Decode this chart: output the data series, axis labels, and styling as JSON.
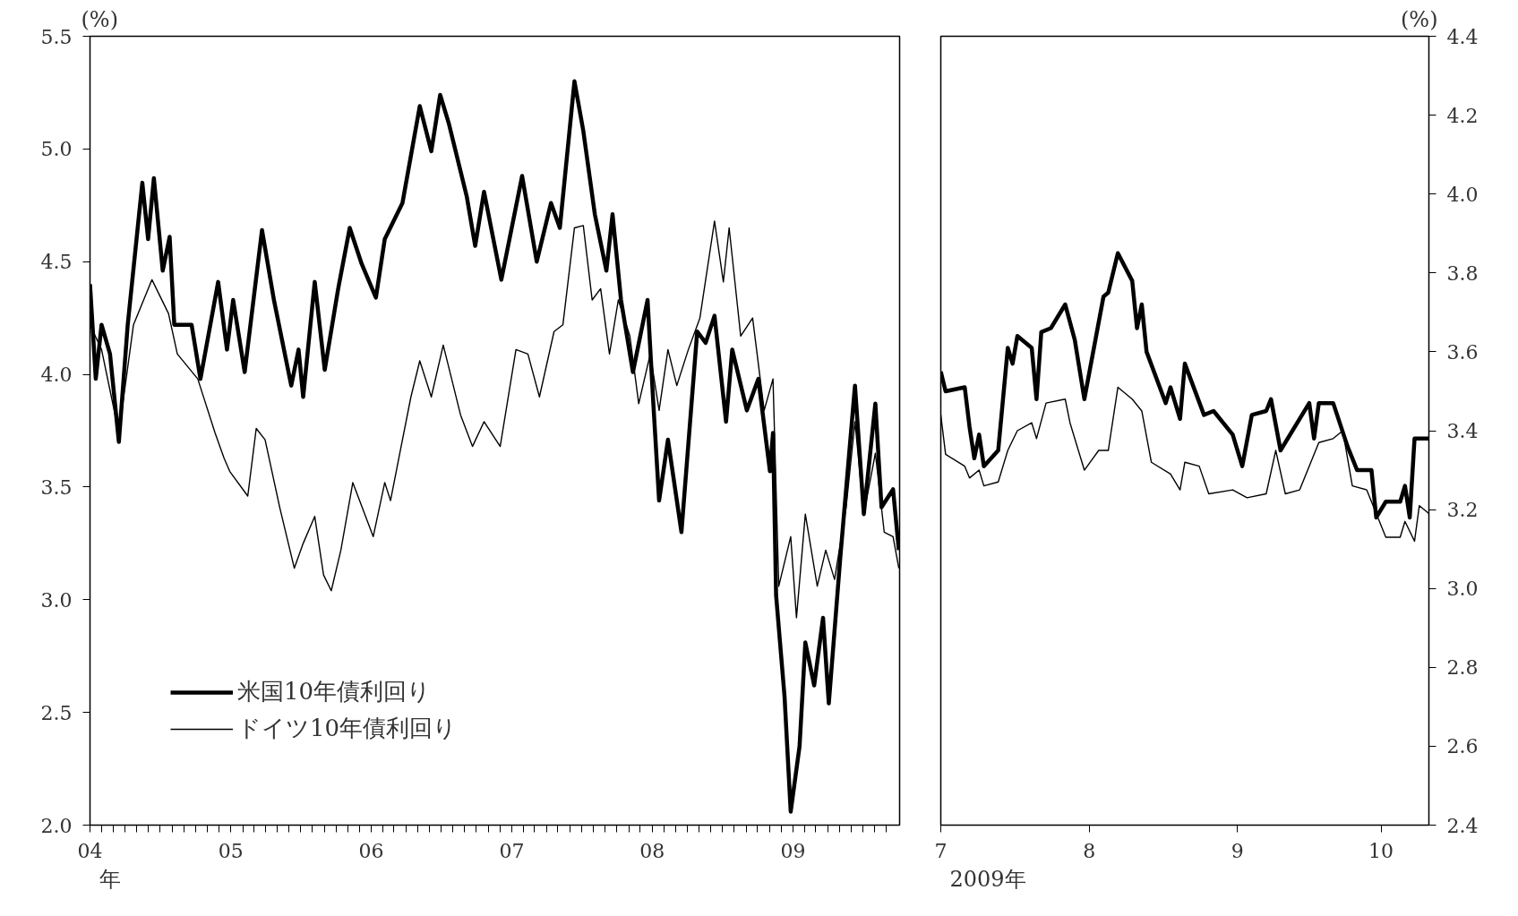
{
  "chart_data": [
    {
      "type": "line",
      "ylabel": "(%)",
      "xlabel": "年",
      "xlim": [
        "2004-01-01",
        "2009-10-05"
      ],
      "ylim": [
        2.0,
        5.5
      ],
      "yticks": [
        {
          "value": 2,
          "label": "2.0"
        },
        2.5,
        {
          "value": 3,
          "label": "3.0"
        },
        3.5,
        {
          "value": 4,
          "label": "4.0"
        },
        4.5,
        {
          "value": 5,
          "label": "5.0"
        },
        5.5
      ],
      "legend": "bottom left",
      "grid": false,
      "xticks": [
        {
          "value": "2004-01",
          "label": "04"
        },
        {
          "value": "2004-02",
          "label": null
        },
        {
          "value": "2004-03",
          "label": null
        },
        {
          "value": "2004-04",
          "label": null
        },
        {
          "value": "2004-05",
          "label": null
        },
        {
          "value": "2004-06",
          "label": null
        },
        {
          "value": "2004-07",
          "label": null
        },
        {
          "value": "2004-08",
          "label": null
        },
        {
          "value": "2004-09",
          "label": null
        },
        {
          "value": "2004-10",
          "label": null
        },
        {
          "value": "2004-11",
          "label": null
        },
        {
          "value": "2004-12",
          "label": null
        },
        {
          "value": "2005-01",
          "label": "05"
        },
        {
          "value": "2005-02",
          "label": null
        },
        {
          "value": "2005-03",
          "label": null
        },
        {
          "value": "2005-04",
          "label": null
        },
        {
          "value": "2005-05",
          "label": null
        },
        {
          "value": "2005-06",
          "label": null
        },
        {
          "value": "2005-07",
          "label": null
        },
        {
          "value": "2005-08",
          "label": null
        },
        {
          "value": "2005-09",
          "label": null
        },
        {
          "value": "2005-10",
          "label": null
        },
        {
          "value": "2005-11",
          "label": null
        },
        {
          "value": "2005-12",
          "label": null
        },
        {
          "value": "2006-01",
          "label": "06"
        },
        {
          "value": "2006-02",
          "label": null
        },
        {
          "value": "2006-03",
          "label": null
        },
        {
          "value": "2006-04",
          "label": null
        },
        {
          "value": "2006-05",
          "label": null
        },
        {
          "value": "2006-06",
          "label": null
        },
        {
          "value": "2006-07",
          "label": null
        },
        {
          "value": "2006-08",
          "label": null
        },
        {
          "value": "2006-09",
          "label": null
        },
        {
          "value": "2006-10",
          "label": null
        },
        {
          "value": "2006-11",
          "label": null
        },
        {
          "value": "2006-12",
          "label": null
        },
        {
          "value": "2007-01",
          "label": "07"
        },
        {
          "value": "2007-02",
          "label": null
        },
        {
          "value": "2007-03",
          "label": null
        },
        {
          "value": "2007-04",
          "label": null
        },
        {
          "value": "2007-05",
          "label": null
        },
        {
          "value": "2007-06",
          "label": null
        },
        {
          "value": "2007-07",
          "label": null
        },
        {
          "value": "2007-08",
          "label": null
        },
        {
          "value": "2007-09",
          "label": null
        },
        {
          "value": "2007-10",
          "label": null
        },
        {
          "value": "2007-11",
          "label": null
        },
        {
          "value": "2007-12",
          "label": null
        },
        {
          "value": "2008-01",
          "label": "08"
        },
        {
          "value": "2008-02",
          "label": null
        },
        {
          "value": "2008-03",
          "label": null
        },
        {
          "value": "2008-04",
          "label": null
        },
        {
          "value": "2008-05",
          "label": null
        },
        {
          "value": "2008-06",
          "label": null
        },
        {
          "value": "2008-07",
          "label": null
        },
        {
          "value": "2008-08",
          "label": null
        },
        {
          "value": "2008-09",
          "label": null
        },
        {
          "value": "2008-10",
          "label": null
        },
        {
          "value": "2008-11",
          "label": null
        },
        {
          "value": "2008-12",
          "label": null
        },
        {
          "value": "2009-01",
          "label": "09"
        },
        {
          "value": "2009-02",
          "label": null
        },
        {
          "value": "2009-03",
          "label": null
        },
        {
          "value": "2009-04",
          "label": null
        },
        {
          "value": "2009-05",
          "label": null
        },
        {
          "value": "2009-06",
          "label": null
        },
        {
          "value": "2009-07",
          "label": null
        },
        {
          "value": "2009-08",
          "label": null
        },
        {
          "value": "2009-09",
          "label": null
        }
      ],
      "series": [
        {
          "name": "米国10年債利回り",
          "color": "#000000",
          "x": [
            "2004-01-01",
            "2004-01-16",
            "2004-01-31",
            "2004-02-22",
            "2004-03-16",
            "2004-04-08",
            "2004-05-16",
            "2004-05-31",
            "2004-06-15",
            "2004-07-08",
            "2004-07-26",
            "2004-08-07",
            "2004-09-21",
            "2004-10-14",
            "2004-11-29",
            "2004-12-22",
            "2005-01-07",
            "2005-02-06",
            "2005-03-23",
            "2005-04-23",
            "2005-06-07",
            "2005-06-26",
            "2005-07-08",
            "2005-08-07",
            "2005-09-02",
            "2005-10-07",
            "2005-11-06",
            "2005-12-07",
            "2006-01-13",
            "2006-02-05",
            "2006-03-23",
            "2006-05-07",
            "2006-06-06",
            "2006-06-29",
            "2006-07-22",
            "2006-09-06",
            "2006-09-28",
            "2006-10-21",
            "2006-12-05",
            "2007-01-28",
            "2007-03-07",
            "2007-04-13",
            "2007-05-06",
            "2007-06-13",
            "2007-07-06",
            "2007-08-05",
            "2007-09-04",
            "2007-09-20",
            "2007-10-12",
            "2007-11-12",
            "2007-12-20",
            "2008-01-04",
            "2008-01-19",
            "2008-02-11",
            "2008-03-17",
            "2008-04-27",
            "2008-05-19",
            "2008-06-11",
            "2008-07-11",
            "2008-07-27",
            "2008-09-03",
            "2008-10-03",
            "2008-11-02",
            "2008-11-10",
            "2008-11-18",
            "2008-12-10",
            "2008-12-26",
            "2009-01-18",
            "2009-02-02",
            "2009-02-25",
            "2009-03-20",
            "2009-04-04",
            "2009-05-04",
            "2009-06-11",
            "2009-07-04",
            "2009-08-03",
            "2009-08-19",
            "2009-09-18",
            "2009-10-03"
          ],
          "values": [
            4.4,
            3.98,
            4.22,
            4.09,
            3.7,
            4.22,
            4.85,
            4.6,
            4.87,
            4.46,
            4.61,
            4.22,
            4.22,
            3.98,
            4.41,
            4.11,
            4.33,
            4.01,
            4.64,
            4.33,
            3.95,
            4.11,
            3.9,
            4.41,
            4.02,
            4.38,
            4.65,
            4.49,
            4.34,
            4.6,
            4.76,
            5.19,
            4.99,
            5.24,
            5.11,
            4.79,
            4.57,
            4.81,
            4.42,
            4.88,
            4.5,
            4.76,
            4.65,
            5.3,
            5.08,
            4.71,
            4.46,
            4.71,
            4.33,
            4.01,
            4.33,
            3.87,
            3.44,
            3.71,
            3.3,
            4.19,
            4.14,
            4.26,
            3.79,
            4.11,
            3.84,
            3.98,
            3.57,
            3.74,
            3.02,
            2.57,
            2.06,
            2.35,
            2.81,
            2.62,
            2.92,
            2.54,
            3.19,
            3.95,
            3.38,
            3.87,
            3.41,
            3.49,
            3.22
          ]
        },
        {
          "name": "ドイツ10年債利回り",
          "color": "#000000",
          "x": [
            "2004-01-01",
            "2004-01-31",
            "2004-03-16",
            "2004-04-23",
            "2004-06-10",
            "2004-07-23",
            "2004-08-15",
            "2004-10-07",
            "2004-11-21",
            "2004-12-14",
            "2004-12-29",
            "2005-02-14",
            "2005-03-08",
            "2005-03-31",
            "2005-05-08",
            "2005-06-15",
            "2005-07-08",
            "2005-08-07",
            "2005-08-30",
            "2005-09-19",
            "2005-10-14",
            "2005-11-14",
            "2006-01-06",
            "2006-02-05",
            "2006-02-20",
            "2006-03-23",
            "2006-04-14",
            "2006-05-07",
            "2006-06-06",
            "2006-07-07",
            "2006-08-21",
            "2006-09-21",
            "2006-10-21",
            "2006-12-02",
            "2007-01-12",
            "2007-02-12",
            "2007-03-14",
            "2007-04-21",
            "2007-05-14",
            "2007-06-13",
            "2007-07-06",
            "2007-07-29",
            "2007-08-20",
            "2007-09-12",
            "2007-10-05",
            "2007-11-04",
            "2007-11-27",
            "2007-12-27",
            "2008-01-19",
            "2008-02-11",
            "2008-03-05",
            "2008-04-04",
            "2008-05-04",
            "2008-06-11",
            "2008-07-04",
            "2008-07-19",
            "2008-08-18",
            "2008-09-18",
            "2008-10-18",
            "2008-11-10",
            "2008-11-25",
            "2008-12-26",
            "2009-01-10",
            "2009-02-02",
            "2009-03-05",
            "2009-03-27",
            "2009-04-19",
            "2009-05-19",
            "2009-06-11",
            "2009-07-04",
            "2009-08-03",
            "2009-08-26",
            "2009-09-18",
            "2009-10-03"
          ],
          "values": [
            4.22,
            4.11,
            3.74,
            4.22,
            4.42,
            4.27,
            4.09,
            3.98,
            3.74,
            3.63,
            3.57,
            3.46,
            3.76,
            3.71,
            3.41,
            3.14,
            3.25,
            3.37,
            3.11,
            3.04,
            3.22,
            3.52,
            3.28,
            3.52,
            3.44,
            3.71,
            3.9,
            4.06,
            3.9,
            4.13,
            3.82,
            3.68,
            3.79,
            3.68,
            4.11,
            4.09,
            3.9,
            4.19,
            4.22,
            4.65,
            4.66,
            4.33,
            4.38,
            4.09,
            4.33,
            4.17,
            3.87,
            4.09,
            3.84,
            4.11,
            3.95,
            4.11,
            4.25,
            4.68,
            4.41,
            4.65,
            4.17,
            4.25,
            3.84,
            3.98,
            3.06,
            3.28,
            2.92,
            3.38,
            3.06,
            3.22,
            3.09,
            3.41,
            3.79,
            3.38,
            3.65,
            3.3,
            3.28,
            3.14
          ]
        }
      ]
    },
    {
      "type": "line",
      "y2label": "(%)",
      "xlabel": "2009年",
      "xlim": [
        "2009-07-01",
        "2009-10-11"
      ],
      "y2lim": [
        2.4,
        4.4
      ],
      "y2ticks": [
        2.4,
        2.6,
        2.8,
        {
          "value": 3,
          "label": "3.0"
        },
        3.2,
        3.4,
        3.6,
        3.8,
        {
          "value": 4,
          "label": "4.0"
        },
        4.2,
        4.4
      ],
      "grid": false,
      "xticks": [
        {
          "value": "2009-07-01",
          "label": "7"
        },
        {
          "value": "2009-08-01",
          "label": "8"
        },
        {
          "value": "2009-09-01",
          "label": "9"
        },
        {
          "value": "2009-10-01",
          "label": "10"
        }
      ],
      "series": [
        {
          "color": "#000000",
          "axis": "y2",
          "x": [
            "2009-07-01",
            "2009-07-02",
            "2009-07-06",
            "2009-07-07",
            "2009-07-08",
            "2009-07-09",
            "2009-07-10",
            "2009-07-13",
            "2009-07-15",
            "2009-07-16",
            "2009-07-17",
            "2009-07-20",
            "2009-07-21",
            "2009-07-22",
            "2009-07-24",
            "2009-07-27",
            "2009-07-29",
            "2009-07-31",
            "2009-08-04",
            "2009-08-05",
            "2009-08-07",
            "2009-08-10",
            "2009-08-11",
            "2009-08-12",
            "2009-08-13",
            "2009-08-17",
            "2009-08-18",
            "2009-08-20",
            "2009-08-21",
            "2009-08-25",
            "2009-08-27",
            "2009-08-31",
            "2009-09-02",
            "2009-09-04",
            "2009-09-07",
            "2009-09-08",
            "2009-09-10",
            "2009-09-16",
            "2009-09-17",
            "2009-09-18",
            "2009-09-21",
            "2009-09-24",
            "2009-09-26",
            "2009-09-29",
            "2009-09-30",
            "2009-10-02",
            "2009-10-05",
            "2009-10-06",
            "2009-10-07",
            "2009-10-08",
            "2009-10-10",
            "2009-10-11"
          ],
          "values": [
            3.55,
            3.5,
            3.51,
            3.41,
            3.33,
            3.39,
            3.31,
            3.35,
            3.61,
            3.57,
            3.64,
            3.61,
            3.48,
            3.65,
            3.66,
            3.72,
            3.63,
            3.48,
            3.74,
            3.75,
            3.85,
            3.78,
            3.66,
            3.72,
            3.6,
            3.47,
            3.51,
            3.43,
            3.57,
            3.44,
            3.45,
            3.39,
            3.31,
            3.44,
            3.45,
            3.48,
            3.35,
            3.47,
            3.38,
            3.47,
            3.47,
            3.36,
            3.3,
            3.3,
            3.18,
            3.22,
            3.22,
            3.26,
            3.18,
            3.38,
            3.38,
            3.38
          ]
        },
        {
          "color": "#000000",
          "axis": "y2",
          "x": [
            "2009-07-01",
            "2009-07-02",
            "2009-07-06",
            "2009-07-07",
            "2009-07-09",
            "2009-07-10",
            "2009-07-13",
            "2009-07-15",
            "2009-07-17",
            "2009-07-20",
            "2009-07-21",
            "2009-07-23",
            "2009-07-27",
            "2009-07-28",
            "2009-07-31",
            "2009-08-03",
            "2009-08-05",
            "2009-08-07",
            "2009-08-10",
            "2009-08-12",
            "2009-08-14",
            "2009-08-18",
            "2009-08-20",
            "2009-08-21",
            "2009-08-24",
            "2009-08-26",
            "2009-08-31",
            "2009-09-03",
            "2009-09-07",
            "2009-09-09",
            "2009-09-11",
            "2009-09-14",
            "2009-09-18",
            "2009-09-21",
            "2009-09-23",
            "2009-09-25",
            "2009-09-28",
            "2009-10-02",
            "2009-10-05",
            "2009-10-06",
            "2009-10-08",
            "2009-10-09",
            "2009-10-11"
          ],
          "values": [
            3.44,
            3.34,
            3.31,
            3.28,
            3.3,
            3.26,
            3.27,
            3.35,
            3.4,
            3.42,
            3.38,
            3.47,
            3.48,
            3.42,
            3.3,
            3.35,
            3.35,
            3.51,
            3.48,
            3.45,
            3.32,
            3.29,
            3.25,
            3.32,
            3.31,
            3.24,
            3.25,
            3.23,
            3.24,
            3.35,
            3.24,
            3.25,
            3.37,
            3.38,
            3.4,
            3.26,
            3.25,
            3.13,
            3.13,
            3.17,
            3.12,
            3.21,
            3.19
          ]
        }
      ]
    }
  ]
}
